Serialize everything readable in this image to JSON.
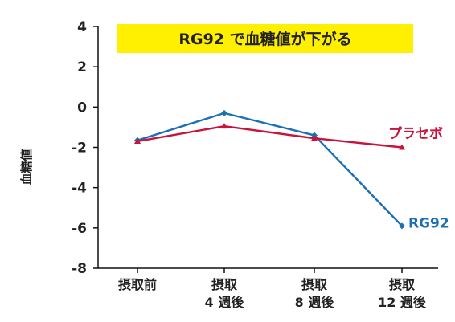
{
  "chart_data": {
    "type": "line",
    "title": "RG92 で血糖値が下がる",
    "ylabel": "血糖値",
    "xlabel": "",
    "ylim": [
      -8,
      4
    ],
    "yticks": [
      "4",
      "2",
      "0",
      "-2",
      "-4",
      "-6",
      "-8"
    ],
    "yticks_values": [
      4,
      2,
      0,
      -2,
      -4,
      -6,
      -8
    ],
    "categories": [
      {
        "line1": "摂取前",
        "line2": ""
      },
      {
        "line1": "摂取",
        "line2": "4 週後"
      },
      {
        "line1": "摂取",
        "line2": "8 週後"
      },
      {
        "line1": "摂取",
        "line2": "12 週後"
      }
    ],
    "series": [
      {
        "name": "RG92",
        "values": [
          -1.65,
          -0.3,
          -1.4,
          -5.9
        ],
        "color": "#1a6fb5",
        "marker": "diamond"
      },
      {
        "name": "プラセボ",
        "values": [
          -1.7,
          -0.95,
          -1.55,
          -2.0
        ],
        "color": "#c8143c",
        "marker": "triangle"
      }
    ],
    "grid": false,
    "title_background": "#ffef00"
  }
}
